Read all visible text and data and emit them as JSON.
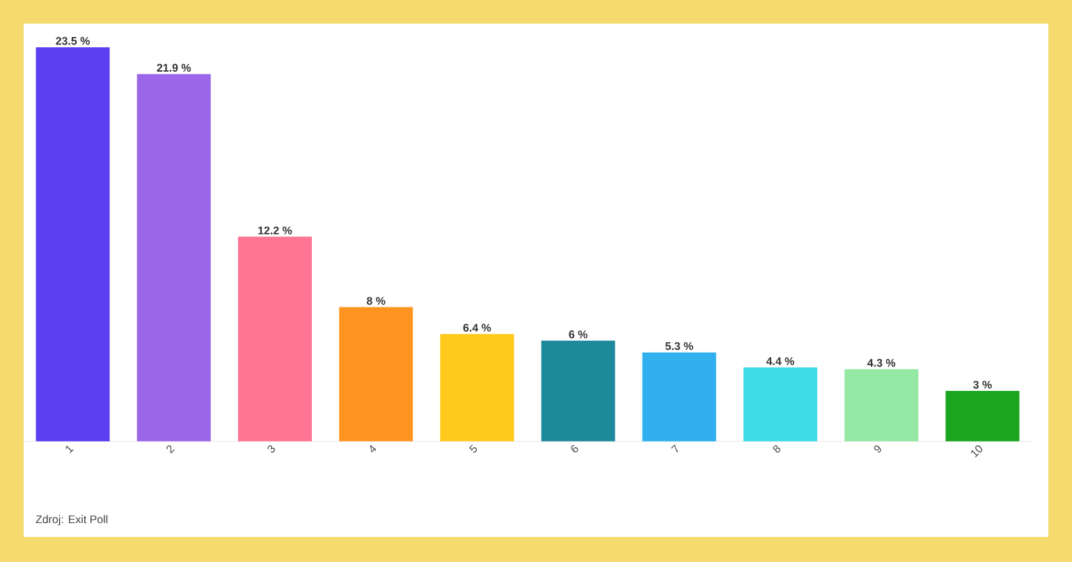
{
  "chart_data": {
    "type": "bar",
    "categories": [
      "1",
      "2",
      "3",
      "4",
      "5",
      "6",
      "7",
      "8",
      "9",
      "10"
    ],
    "values": [
      23.5,
      21.9,
      12.2,
      8,
      6.4,
      6,
      5.3,
      4.4,
      4.3,
      3
    ],
    "colors": [
      "#5b3ff0",
      "#9b66e8",
      "#ff7593",
      "#ff9520",
      "#ffca1c",
      "#1d8a9b",
      "#30b0ef",
      "#3cdce6",
      "#96e9a4",
      "#1ba51f"
    ],
    "value_labels": [
      "23.5 %",
      "21.9 %",
      "12.2 %",
      "8 %",
      "6.4 %",
      "6 %",
      "5.3 %",
      "4.4 %",
      "4.3 %",
      "3 %"
    ],
    "annotations": [
      "Zdroj: Exit Poll"
    ]
  }
}
